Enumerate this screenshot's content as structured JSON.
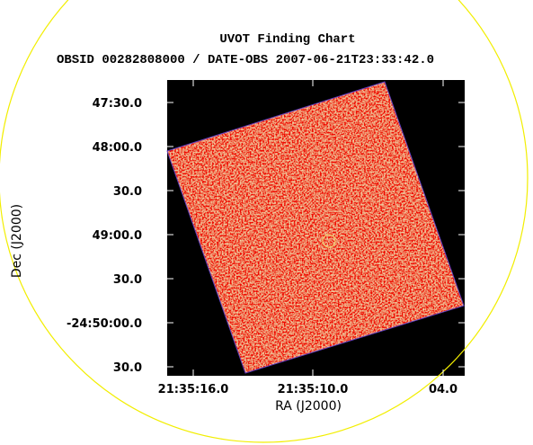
{
  "title": "UVOT Finding Chart",
  "subtitle": "OBSID 00282808000 / DATE-OBS 2007-06-21T23:33:42.0",
  "x_axis": {
    "label": "RA (J2000)",
    "ticks": [
      "21:35:16.0",
      "21:35:10.0",
      "04.0"
    ]
  },
  "y_axis": {
    "label": "Dec (J2000)",
    "ticks": [
      "47:30.0",
      "48:00.0",
      "30.0",
      "49:00.0",
      "30.0",
      "-24:50:00.0",
      "30.0"
    ]
  }
}
